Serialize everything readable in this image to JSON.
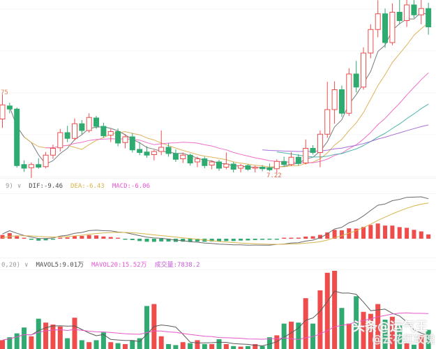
{
  "labels": {
    "price_axis_left": "75",
    "low_marker": "7.22"
  },
  "indicator_rows": {
    "macd": {
      "prefix": "9)",
      "caret": "∨",
      "dif_label": "DIF:-9.46",
      "dea_label": "DEA:-6.43",
      "macd_label": "MACD:-6.06"
    },
    "volume": {
      "prefix": "0,20)",
      "caret": "∨",
      "mavol5_label": "MAVOL5:9.01万",
      "mavol20_label": "MAVOL20:15.52万",
      "turnover_label": "成交量:7838.2"
    }
  },
  "watermark": {
    "primary": "头条@运气王",
    "secondary": "@云花红玫瑰"
  },
  "colors": {
    "up": "#ef4c4c",
    "down": "#2faa71",
    "up_fill": "#ffffff",
    "ma5": "#7a7a7a",
    "ma10": "#e0b35c",
    "ma20": "#f06fc9",
    "ma30": "#4db3aa",
    "ma60": "#a66fd6",
    "grid": "#f4f4f4",
    "dif_line": "#6a6a6a",
    "dea_line": "#d8b44a",
    "hist_pos": "#ef4c4c",
    "hist_neg": "#2faa71",
    "volma5": "#5a5a5a",
    "volma20": "#e558c8",
    "label_orange": "#e0875f",
    "low_label": "#e2654e",
    "text_gray": "#9a9a9a",
    "text_dark": "#4a4a4a",
    "text_yellow": "#d8b44a",
    "text_magenta": "#e554d4",
    "text_purple": "#c558d8"
  },
  "chart_data": [
    {
      "type": "candlestick",
      "style": "china-red-up-hollow-green-down-solid",
      "ylim": [
        6.97,
        10.52
      ],
      "grid_prices": [
        10.35,
        9.55,
        8.75,
        7.95,
        7.15
      ],
      "ma_periods": [
        5,
        10,
        20,
        30,
        60
      ],
      "annotations": [
        {
          "text": "75",
          "price": 8.75,
          "position": "left-axis"
        },
        {
          "text": "7.22",
          "candle_index": 38,
          "price": 7.22,
          "position": "below-low"
        }
      ],
      "ohlc": [
        [
          8.25,
          8.72,
          8.08,
          8.52
        ],
        [
          8.5,
          8.56,
          8.36,
          8.44
        ],
        [
          8.44,
          8.47,
          7.32,
          7.36
        ],
        [
          7.38,
          7.46,
          7.24,
          7.31
        ],
        [
          7.32,
          7.42,
          6.98,
          7.38
        ],
        [
          7.38,
          7.5,
          7.3,
          7.33
        ],
        [
          7.34,
          7.62,
          7.31,
          7.56
        ],
        [
          7.56,
          7.76,
          7.49,
          7.69
        ],
        [
          7.7,
          8.06,
          7.63,
          7.99
        ],
        [
          7.99,
          8.12,
          7.81,
          7.88
        ],
        [
          7.88,
          8.26,
          7.84,
          8.16
        ],
        [
          8.16,
          8.23,
          7.96,
          8.03
        ],
        [
          8.03,
          8.36,
          7.99,
          8.28
        ],
        [
          8.27,
          8.31,
          8.06,
          8.11
        ],
        [
          8.11,
          8.18,
          7.89,
          7.93
        ],
        [
          7.94,
          8.06,
          7.81,
          8.01
        ],
        [
          8.01,
          8.07,
          7.73,
          7.79
        ],
        [
          7.8,
          7.96,
          7.69,
          7.91
        ],
        [
          7.91,
          7.98,
          7.61,
          7.66
        ],
        [
          7.67,
          7.81,
          7.56,
          7.61
        ],
        [
          7.62,
          7.73,
          7.51,
          7.56
        ],
        [
          7.57,
          7.66,
          7.46,
          7.63
        ],
        [
          7.63,
          8.03,
          7.56,
          7.71
        ],
        [
          7.71,
          7.79,
          7.53,
          7.59
        ],
        [
          7.59,
          7.67,
          7.43,
          7.48
        ],
        [
          7.49,
          7.61,
          7.41,
          7.56
        ],
        [
          7.56,
          7.59,
          7.36,
          7.41
        ],
        [
          7.43,
          7.53,
          7.33,
          7.49
        ],
        [
          7.49,
          7.53,
          7.31,
          7.36
        ],
        [
          7.37,
          7.46,
          7.29,
          7.43
        ],
        [
          7.43,
          7.47,
          7.26,
          7.31
        ],
        [
          7.33,
          7.61,
          7.29,
          7.39
        ],
        [
          7.39,
          7.43,
          7.23,
          7.29
        ],
        [
          7.31,
          7.39,
          7.23,
          7.36
        ],
        [
          7.36,
          7.39,
          7.26,
          7.29
        ],
        [
          7.31,
          7.36,
          7.23,
          7.33
        ],
        [
          7.33,
          7.37,
          7.25,
          7.3
        ],
        [
          7.32,
          7.4,
          7.25,
          7.28
        ],
        [
          7.3,
          7.48,
          7.22,
          7.44
        ],
        [
          7.44,
          7.53,
          7.34,
          7.38
        ],
        [
          7.38,
          7.62,
          7.35,
          7.52
        ],
        [
          7.52,
          7.58,
          7.36,
          7.4
        ],
        [
          7.41,
          7.86,
          7.38,
          7.69
        ],
        [
          7.69,
          7.75,
          7.57,
          7.61
        ],
        [
          7.61,
          8.03,
          7.33,
          7.96
        ],
        [
          7.96,
          8.96,
          7.89,
          8.43
        ],
        [
          8.43,
          8.97,
          8.16,
          8.81
        ],
        [
          8.81,
          8.89,
          8.29,
          8.36
        ],
        [
          8.36,
          9.22,
          8.31,
          9.11
        ],
        [
          9.11,
          9.36,
          8.76,
          8.86
        ],
        [
          8.86,
          9.62,
          8.81,
          9.51
        ],
        [
          9.51,
          10.06,
          9.41,
          9.96
        ],
        [
          9.96,
          10.52,
          9.81,
          10.26
        ],
        [
          10.26,
          10.36,
          9.61,
          9.71
        ],
        [
          9.71,
          10.46,
          9.66,
          10.29
        ],
        [
          10.29,
          10.72,
          10.06,
          10.13
        ],
        [
          10.13,
          10.56,
          10.01,
          10.43
        ],
        [
          10.43,
          10.76,
          10.18,
          10.24
        ],
        [
          10.24,
          10.73,
          10.06,
          10.36
        ],
        [
          10.36,
          10.47,
          9.86,
          10.01
        ]
      ]
    },
    {
      "type": "bar",
      "name": "MACD(12,26,9)",
      "derivation": "DIF=EMA12-EMA26 of closes; DEA=EMA9 of DIF; histogram=DIF-DEA",
      "ema_seed": 7.5,
      "readout": {
        "dif": -9.46,
        "dea": -6.43,
        "macd": -6.06
      }
    },
    {
      "type": "bar",
      "name": "volume",
      "unit": "万",
      "ma_periods": [
        5,
        20
      ],
      "readout": {
        "mavol5": "9.01万",
        "mavol20": "15.52万",
        "turnover": "7838.2"
      },
      "values": [
        4.5,
        6,
        8,
        11,
        6.5,
        15.5,
        13.5,
        12.5,
        11.5,
        5.5,
        16,
        4.5,
        3.5,
        4.5,
        8.5,
        3.5,
        3,
        2.5,
        4.5,
        5.5,
        22,
        23,
        6.5,
        2.5,
        2,
        3.5,
        3,
        4.5,
        2.5,
        2.5,
        5,
        2.5,
        1.5,
        1.2,
        1.5,
        2.5,
        1.5,
        6,
        7,
        13,
        14,
        13.5,
        26,
        13,
        30,
        39,
        40,
        21,
        13,
        27,
        19,
        18,
        23,
        15,
        16.5,
        12,
        3,
        2.2,
        7,
        9.8
      ]
    }
  ]
}
